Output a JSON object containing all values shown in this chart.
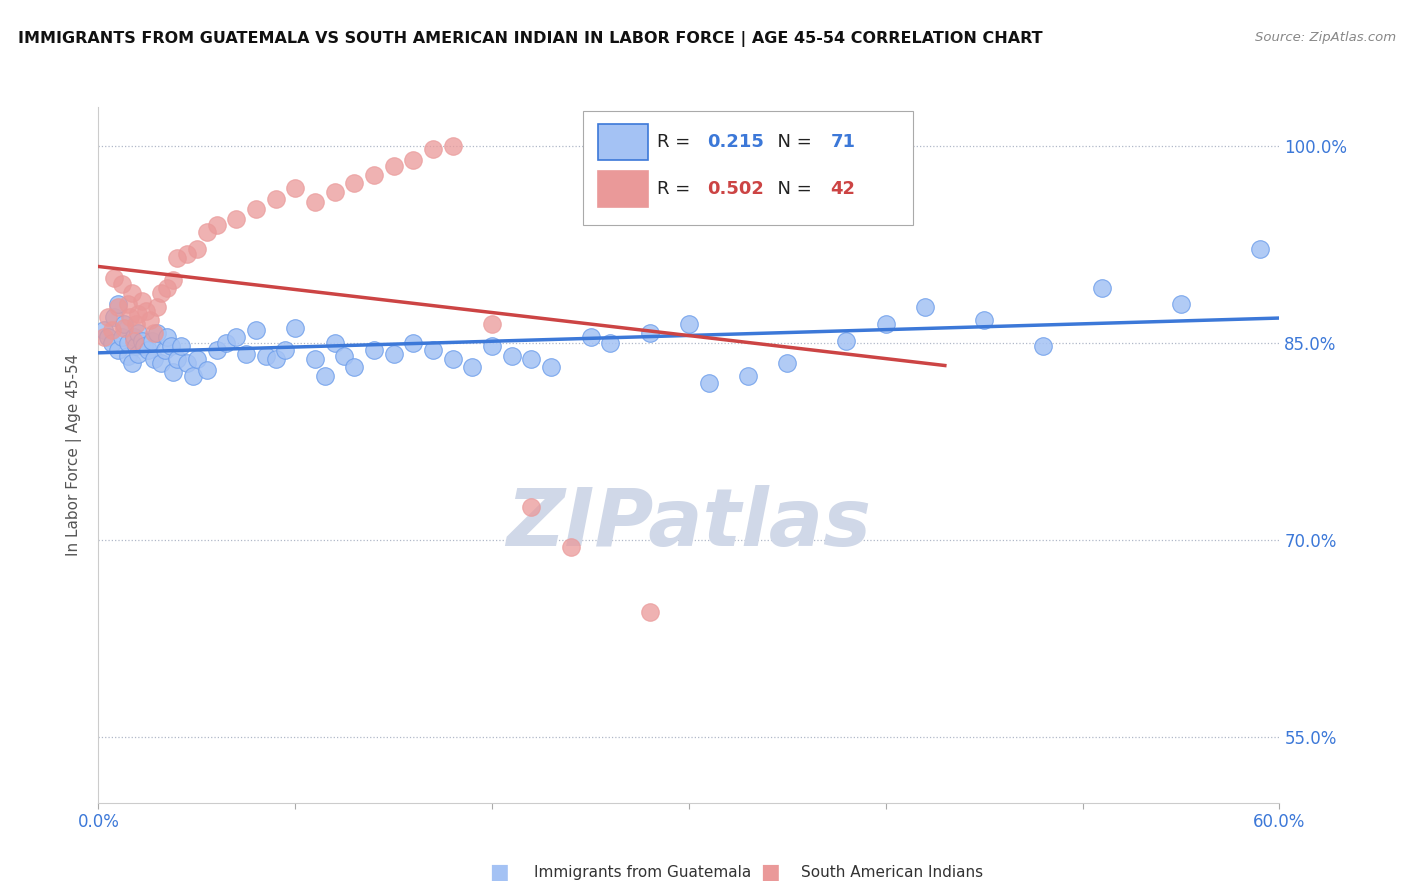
{
  "title": "IMMIGRANTS FROM GUATEMALA VS SOUTH AMERICAN INDIAN IN LABOR FORCE | AGE 45-54 CORRELATION CHART",
  "source": "Source: ZipAtlas.com",
  "ylabel": "In Labor Force | Age 45-54",
  "xlim": [
    0.0,
    0.6
  ],
  "ylim": [
    0.5,
    1.03
  ],
  "xticks": [
    0.0,
    0.1,
    0.2,
    0.3,
    0.4,
    0.5,
    0.6
  ],
  "xticklabels": [
    "0.0%",
    "",
    "",
    "",
    "",
    "",
    "60.0%"
  ],
  "ytick_positions": [
    0.55,
    0.7,
    0.85,
    1.0
  ],
  "yticklabels": [
    "55.0%",
    "70.0%",
    "85.0%",
    "100.0%"
  ],
  "blue_R": 0.215,
  "blue_N": 71,
  "pink_R": 0.502,
  "pink_N": 42,
  "blue_color": "#a4c2f4",
  "pink_color": "#ea9999",
  "blue_line_color": "#3c78d8",
  "pink_line_color": "#cc4444",
  "blue_edge_color": "#6d9eeb",
  "watermark": "ZIPatlas",
  "watermark_color": "#d0d8e8",
  "legend_label_blue": "Immigrants from Guatemala",
  "legend_label_pink": "South American Indians",
  "background_color": "#ffffff",
  "blue_tick_color": "#3c78d8",
  "note_color": "#888888",
  "blue_scatter_x": [
    0.003,
    0.005,
    0.007,
    0.008,
    0.01,
    0.01,
    0.012,
    0.013,
    0.015,
    0.015,
    0.017,
    0.018,
    0.019,
    0.02,
    0.02,
    0.022,
    0.023,
    0.025,
    0.027,
    0.028,
    0.03,
    0.032,
    0.034,
    0.035,
    0.037,
    0.038,
    0.04,
    0.042,
    0.045,
    0.048,
    0.05,
    0.055,
    0.06,
    0.065,
    0.07,
    0.075,
    0.08,
    0.085,
    0.09,
    0.095,
    0.1,
    0.11,
    0.115,
    0.12,
    0.125,
    0.13,
    0.14,
    0.15,
    0.16,
    0.17,
    0.18,
    0.19,
    0.2,
    0.21,
    0.22,
    0.23,
    0.25,
    0.26,
    0.28,
    0.3,
    0.31,
    0.33,
    0.35,
    0.38,
    0.4,
    0.42,
    0.45,
    0.48,
    0.51,
    0.55,
    0.59
  ],
  "blue_scatter_y": [
    0.86,
    0.855,
    0.85,
    0.87,
    0.845,
    0.88,
    0.855,
    0.865,
    0.84,
    0.85,
    0.835,
    0.855,
    0.848,
    0.858,
    0.842,
    0.852,
    0.848,
    0.845,
    0.852,
    0.838,
    0.858,
    0.835,
    0.845,
    0.855,
    0.848,
    0.828,
    0.838,
    0.848,
    0.835,
    0.825,
    0.838,
    0.83,
    0.845,
    0.85,
    0.855,
    0.842,
    0.86,
    0.84,
    0.838,
    0.845,
    0.862,
    0.838,
    0.825,
    0.85,
    0.84,
    0.832,
    0.845,
    0.842,
    0.85,
    0.845,
    0.838,
    0.832,
    0.848,
    0.84,
    0.838,
    0.832,
    0.855,
    0.85,
    0.858,
    0.865,
    0.82,
    0.825,
    0.835,
    0.852,
    0.865,
    0.878,
    0.868,
    0.848,
    0.892,
    0.88,
    0.922
  ],
  "pink_scatter_x": [
    0.003,
    0.005,
    0.007,
    0.008,
    0.01,
    0.012,
    0.013,
    0.015,
    0.016,
    0.017,
    0.018,
    0.019,
    0.02,
    0.022,
    0.024,
    0.026,
    0.028,
    0.03,
    0.032,
    0.035,
    0.038,
    0.04,
    0.045,
    0.05,
    0.055,
    0.06,
    0.07,
    0.08,
    0.09,
    0.1,
    0.11,
    0.12,
    0.13,
    0.14,
    0.15,
    0.16,
    0.17,
    0.18,
    0.2,
    0.22,
    0.24,
    0.28
  ],
  "pink_scatter_y": [
    0.855,
    0.87,
    0.86,
    0.9,
    0.878,
    0.895,
    0.862,
    0.88,
    0.87,
    0.888,
    0.852,
    0.865,
    0.872,
    0.882,
    0.875,
    0.868,
    0.858,
    0.878,
    0.888,
    0.892,
    0.898,
    0.915,
    0.918,
    0.922,
    0.935,
    0.94,
    0.945,
    0.952,
    0.96,
    0.968,
    0.958,
    0.965,
    0.972,
    0.978,
    0.985,
    0.99,
    0.998,
    1.0,
    0.865,
    0.725,
    0.695,
    0.645
  ]
}
